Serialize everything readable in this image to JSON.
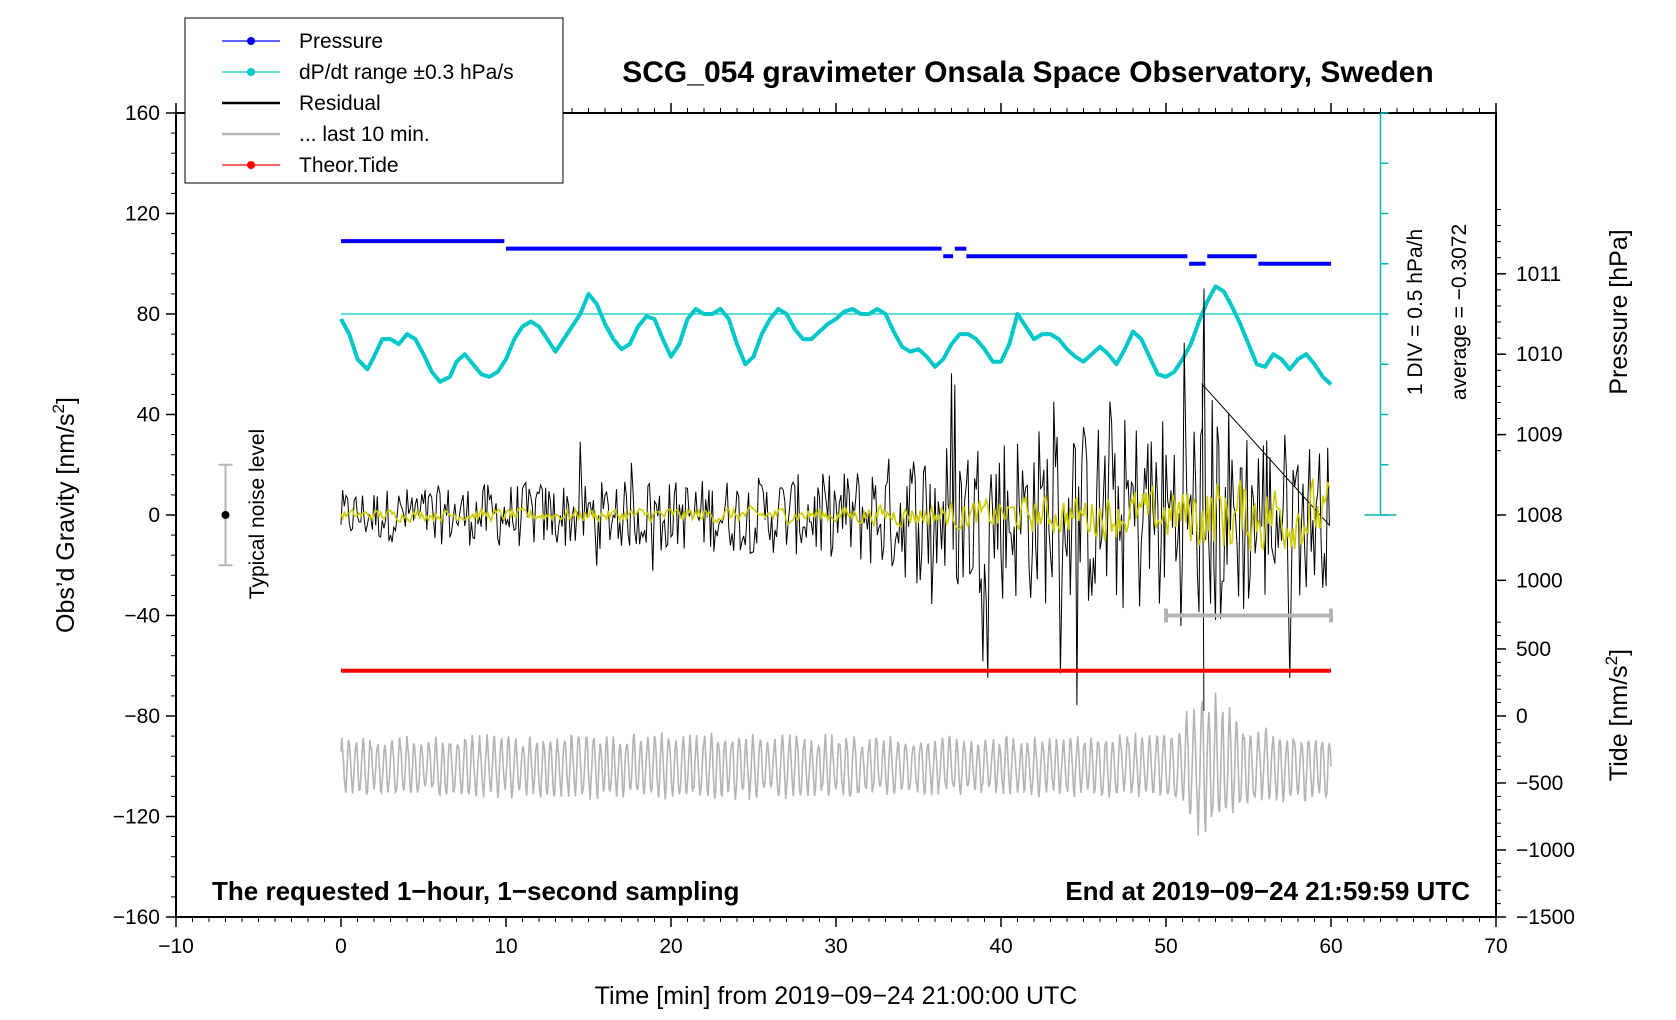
{
  "chart_data": {
    "type": "line",
    "title": "SCG_054 gravimeter Onsala Space Observatory, Sweden",
    "xlabel": "Time [min] from 2019−09−24 21:00:00 UTC",
    "xlim": [
      -10,
      70
    ],
    "x_ticks": [
      "−10",
      "0",
      "10",
      "20",
      "30",
      "40",
      "50",
      "60",
      "70"
    ],
    "y_left": {
      "label": "Obs’d Gravity [nm/s²]",
      "label_main": "Obs’d Gravity [nm/s",
      "label_sup": "2",
      "label_end": "]",
      "ylim": [
        -160,
        160
      ],
      "ticks": [
        "−160",
        "−120",
        "−80",
        "−40",
        "0",
        "40",
        "80",
        "120",
        "160"
      ]
    },
    "y_right_pressure": {
      "label": "Pressure [hPa]",
      "ticks": [
        "1008",
        "1009",
        "1010",
        "1011"
      ],
      "annotation_div": "1 DIV = 0.5 hPa/h",
      "annotation_avg": "average = −0.3072"
    },
    "y_right_pressure_lower": {
      "ticks": [
        "1000"
      ]
    },
    "y_right_tide": {
      "label": "Tide [nm/s²]",
      "label_main": "Tide [nm/s",
      "label_sup": "2",
      "label_end": "]",
      "ticks": [
        "−1500",
        "−1000",
        "−500",
        "0",
        "500"
      ]
    },
    "legend": [
      {
        "label": "Pressure",
        "color": "#0000ff",
        "marker": true
      },
      {
        "label": "dP/dt range ±0.3 hPa/s",
        "color": "#00c8c8",
        "marker": true
      },
      {
        "label": "Residual",
        "color": "#000000",
        "marker": false
      },
      {
        "label": "... last 10 min.",
        "color": "#b4b4b4",
        "marker": false
      },
      {
        "label": "Theor.Tide",
        "color": "#ff0000",
        "marker": true
      }
    ],
    "noise_label": "Typical noise level",
    "noise_level": {
      "center": 0,
      "half_range": 20
    },
    "note_left": "The requested 1−hour, 1−second sampling",
    "note_right": "End at 2019−09−24 21:59:59 UTC",
    "series": [
      {
        "name": "Pressure",
        "color": "#0000ff",
        "segments": [
          {
            "x": [
              0,
              9.9
            ],
            "y": 109
          },
          {
            "x": 10,
            "x_end": 36.4,
            "y": 106
          },
          {
            "x": 36.5,
            "x_end": 37.1,
            "y": 103
          },
          {
            "x": 37.2,
            "x_end": 37.9,
            "y": 106
          },
          {
            "x": 37.9,
            "x_end": 51.3,
            "y": 103
          },
          {
            "x": 51.4,
            "x_end": 52.4,
            "y": 100
          },
          {
            "x": 52.5,
            "x_end": 55.5,
            "y": 103
          },
          {
            "x": 55.6,
            "x_end": 60,
            "y": 100
          }
        ]
      },
      {
        "name": "dP/dt",
        "color": "#00c8c8",
        "x": [
          0,
          0.5,
          1,
          1.6,
          2,
          2.5,
          3,
          3.5,
          4,
          4.5,
          5,
          5.5,
          6,
          6.6,
          7,
          7.5,
          8,
          8.5,
          9,
          9.5,
          10,
          10.5,
          11,
          11.5,
          12,
          12.5,
          13,
          13.5,
          14,
          14.5,
          15,
          15.5,
          16,
          16.5,
          17,
          17.5,
          18,
          18.5,
          19,
          19.5,
          20,
          20.5,
          21,
          21.5,
          22,
          22.5,
          23,
          23.5,
          24,
          24.5,
          25,
          25.5,
          26,
          26.5,
          27,
          27.5,
          28,
          28.5,
          29,
          29.5,
          30,
          30.5,
          31,
          31.5,
          32,
          32.5,
          33,
          33.5,
          34,
          34.5,
          35,
          35.5,
          36,
          36.5,
          37,
          37.5,
          38,
          38.5,
          39,
          39.5,
          40,
          40.5,
          41,
          41.5,
          42,
          42.5,
          43,
          43.5,
          44,
          44.5,
          45,
          45.5,
          46,
          46.5,
          47,
          47.5,
          48,
          48.5,
          49,
          49.5,
          50,
          50.5,
          51,
          51.5,
          52,
          52.5,
          53,
          53.5,
          54,
          54.5,
          55,
          55.5,
          56,
          56.5,
          57,
          57.5,
          58,
          58.5,
          59,
          59.5,
          60
        ],
        "y": [
          78,
          72,
          62,
          58,
          63,
          70,
          70,
          68,
          72,
          70,
          64,
          57,
          53,
          55,
          61,
          64,
          60,
          56,
          55,
          57,
          62,
          70,
          75,
          77,
          75,
          70,
          65,
          70,
          75,
          80,
          88,
          84,
          76,
          70,
          66,
          68,
          75,
          79,
          78,
          70,
          63,
          68,
          78,
          82,
          80,
          80,
          82,
          78,
          68,
          60,
          63,
          72,
          78,
          82,
          80,
          74,
          70,
          70,
          73,
          76,
          78,
          81,
          82,
          80,
          80,
          82,
          80,
          73,
          67,
          65,
          66,
          63,
          59,
          62,
          68,
          72,
          72,
          70,
          66,
          61,
          61,
          68,
          80,
          75,
          70,
          72,
          72,
          70,
          66,
          63,
          61,
          64,
          67,
          64,
          60,
          66,
          73,
          70,
          63,
          56,
          55,
          57,
          62,
          68,
          77,
          85,
          91,
          89,
          83,
          76,
          68,
          60,
          59,
          64,
          62,
          58,
          62,
          64,
          60,
          55,
          52
        ]
      },
      {
        "name": "Residual",
        "color": "#000000",
        "x": [
          0,
          60
        ],
        "envelope": [
          [
            0,
            10
          ],
          [
            10,
            13
          ],
          [
            20,
            14
          ],
          [
            30,
            17
          ],
          [
            35,
            28
          ],
          [
            40,
            35
          ],
          [
            45,
            38
          ],
          [
            50,
            42
          ],
          [
            53,
            50
          ],
          [
            55,
            40
          ],
          [
            60,
            28
          ]
        ]
      },
      {
        "name": "Residual smoothed",
        "color": "#cccc00",
        "x": [
          0,
          60
        ],
        "envelope": [
          [
            0,
            2
          ],
          [
            30,
            3
          ],
          [
            40,
            6
          ],
          [
            50,
            10
          ],
          [
            53,
            15
          ],
          [
            60,
            12
          ]
        ]
      },
      {
        "name": "last 10 min.",
        "color": "#b4b4b4",
        "x": [
          50,
          60
        ],
        "y": -40
      },
      {
        "name": "Theor.Tide",
        "color": "#ff0000",
        "x": [
          0,
          60
        ],
        "y": -62
      },
      {
        "name": "Residual (reduced)",
        "color": "#b4b4b4",
        "x": [
          0,
          60
        ],
        "baseline": -100,
        "envelope": [
          [
            0,
            12
          ],
          [
            20,
            14
          ],
          [
            40,
            12
          ],
          [
            50,
            14
          ],
          [
            52,
            28
          ],
          [
            53,
            30
          ],
          [
            55,
            16
          ],
          [
            60,
            14
          ]
        ]
      }
    ]
  }
}
